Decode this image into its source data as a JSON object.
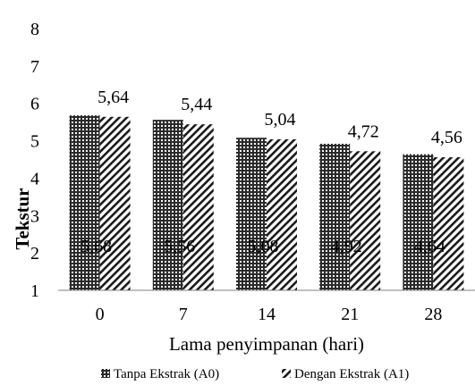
{
  "chart_data": {
    "type": "bar",
    "categories": [
      "0",
      "7",
      "14",
      "21",
      "28"
    ],
    "series": [
      {
        "name": "Tanpa Ekstrak (A0)",
        "values": [
          5.68,
          5.56,
          5.08,
          4.92,
          4.64
        ],
        "labels": [
          "5,68",
          "5,56",
          "5,08",
          "4,92",
          "4,64"
        ],
        "pattern": "checker"
      },
      {
        "name": "Dengan Ekstrak (A1)",
        "values": [
          5.64,
          5.44,
          5.04,
          4.72,
          4.56
        ],
        "labels": [
          "5,64",
          "5,44",
          "5,04",
          "4,72",
          "4,56"
        ],
        "pattern": "diagonal"
      }
    ],
    "yticks": [
      "1",
      "2",
      "3",
      "4",
      "5",
      "6",
      "7",
      "8"
    ],
    "ylabel": "Tekstur",
    "xlabel": "Lama penyimpanan (hari)",
    "ylim": [
      1,
      8
    ],
    "grid": false,
    "legend": "bottom",
    "colors": {
      "bar_fill": "#1a1a1a",
      "bar_pattern": "#ffffff",
      "axis": "#808080"
    }
  }
}
